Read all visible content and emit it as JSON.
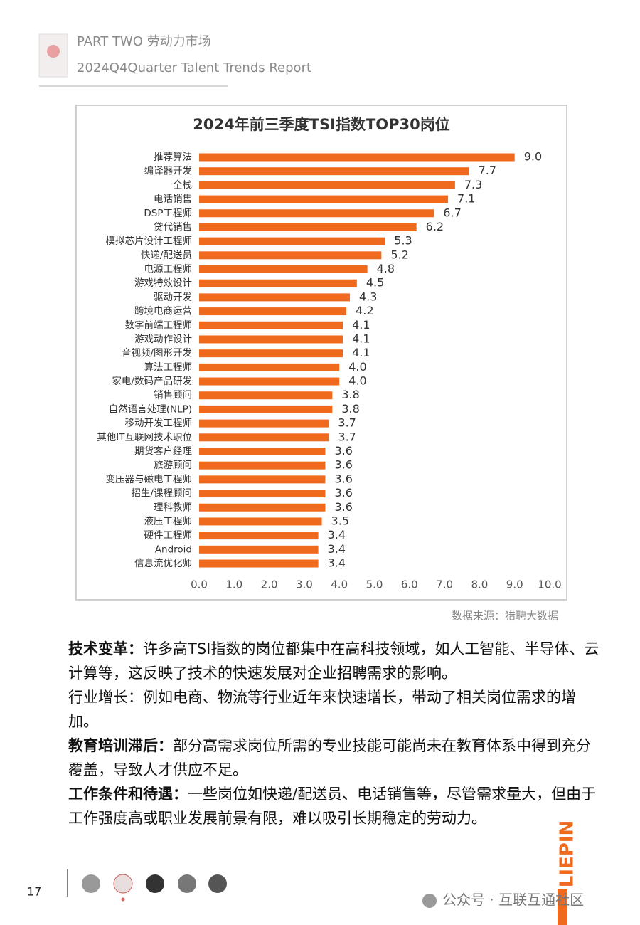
{
  "header": {
    "title": "PART TWO 劳动力市场",
    "subtitle": "2024Q4Quarter Talent Trends Report"
  },
  "chart_data": {
    "type": "bar",
    "orientation": "horizontal",
    "title": "2024年前三季度TSI指数TOP30岗位",
    "categories": [
      "推荐算法",
      "编译器开发",
      "全栈",
      "电话销售",
      "DSP工程师",
      "贷代销售",
      "模拟芯片设计工程师",
      "快递/配送员",
      "电源工程师",
      "游戏特效设计",
      "驱动开发",
      "跨境电商运营",
      "数字前端工程师",
      "游戏动作设计",
      "音视频/图形开发",
      "算法工程师",
      "家电/数码产品研发",
      "销售顾问",
      "自然语言处理(NLP)",
      "移动开发工程师",
      "其他IT互联网技术职位",
      "期货客户经理",
      "旅游顾问",
      "变压器与磁电工程师",
      "招生/课程顾问",
      "理科教师",
      "液压工程师",
      "硬件工程师",
      "Android",
      "信息流优化师"
    ],
    "values": [
      9.0,
      7.7,
      7.3,
      7.1,
      6.7,
      6.2,
      5.3,
      5.2,
      4.8,
      4.5,
      4.3,
      4.2,
      4.1,
      4.1,
      4.1,
      4.0,
      4.0,
      3.8,
      3.8,
      3.7,
      3.7,
      3.6,
      3.6,
      3.6,
      3.6,
      3.6,
      3.5,
      3.4,
      3.4,
      3.4
    ],
    "value_labels": [
      "9.0",
      "7.7",
      "7.3",
      "7.1",
      "6.7",
      "6.2",
      "5.3",
      "5.2",
      "4.8",
      "4.5",
      "4.3",
      "4.2",
      "4.1",
      "4.1",
      "4.1",
      "4.0",
      "4.0",
      "3.8",
      "3.8",
      "3.7",
      "3.7",
      "3.6",
      "3.6",
      "3.6",
      "3.6",
      "3.6",
      "3.5",
      "3.4",
      "3.4",
      "3.4"
    ],
    "color": "#f06a1e",
    "xlim": [
      0,
      10
    ],
    "xticks": [
      {
        "value": 0,
        "label": "0.0"
      },
      {
        "value": 1,
        "label": "1.0"
      },
      {
        "value": 2,
        "label": "2.0"
      },
      {
        "value": 3,
        "label": "3.0"
      },
      {
        "value": 4,
        "label": "4.0"
      },
      {
        "value": 5,
        "label": "5.0"
      },
      {
        "value": 6,
        "label": "6.0"
      },
      {
        "value": 7,
        "label": "7.0"
      },
      {
        "value": 8,
        "label": "8.0"
      },
      {
        "value": 9,
        "label": "9.0"
      },
      {
        "value": 10,
        "label": "10.0"
      }
    ],
    "grid": false,
    "source": "数据来源：猎聘大数据"
  },
  "paragraphs": [
    {
      "lead": "技术变革：",
      "text": "许多高TSI指数的岗位都集中在高科技领域，如人工智能、半导体、云计算等，这反映了技术的快速发展对企业招聘需求的影响。"
    },
    {
      "lead": "行业增长：",
      "text": "例如电商、物流等行业近年来快速增长，带动了相关岗位需求的增加。"
    },
    {
      "lead": "教育培训滞后：",
      "text": "部分高需求岗位所需的专业技能可能尚未在教育体系中得到充分覆盖，导致人才供应不足。"
    },
    {
      "lead": "工作条件和待遇：",
      "text": "一些岗位如快递/配送员、电话销售等，尽管需求量大，但由于工作强度高或职业发展前景有限，难以吸引长期稳定的劳动力。"
    }
  ],
  "footer": {
    "page_number": "17",
    "brand": "LIEPIN",
    "watermark": "公众号 · 互联互通社区"
  }
}
